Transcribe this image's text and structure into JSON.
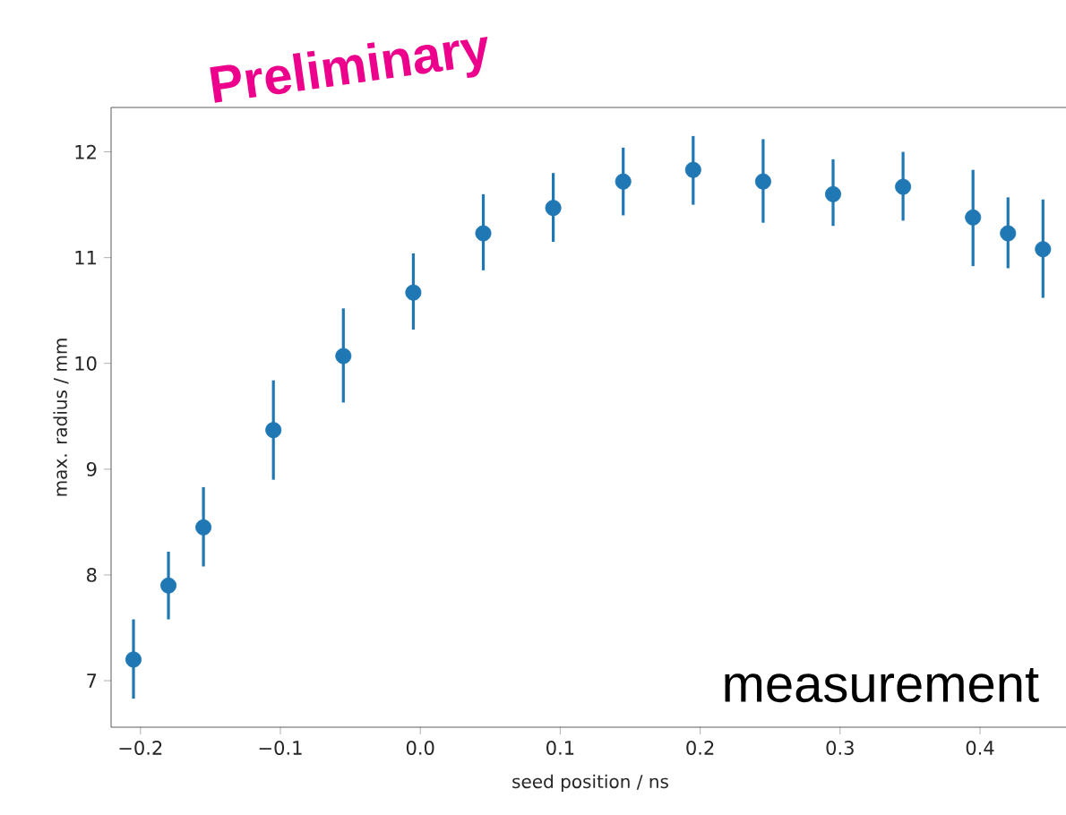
{
  "chart_data": {
    "type": "scatter",
    "xlabel": "seed position / ns",
    "ylabel": "max. radius / mm",
    "annotations": [
      "Preliminary",
      "measurement"
    ],
    "x": [
      -0.205,
      -0.18,
      -0.155,
      -0.105,
      -0.055,
      -0.005,
      0.045,
      0.095,
      0.145,
      0.195,
      0.245,
      0.295,
      0.345,
      0.395,
      0.42,
      0.445
    ],
    "series": [
      {
        "color": "#1f77b4",
        "values": [
          7.2,
          7.9,
          8.45,
          9.37,
          10.07,
          10.67,
          11.23,
          11.47,
          11.72,
          11.83,
          11.72,
          11.6,
          11.67,
          11.38,
          11.23,
          11.08
        ],
        "errors": [
          [
            6.83,
            7.58
          ],
          [
            7.58,
            8.22
          ],
          [
            8.08,
            8.83
          ],
          [
            8.9,
            9.84
          ],
          [
            9.63,
            10.52
          ],
          [
            10.32,
            11.04
          ],
          [
            10.88,
            11.6
          ],
          [
            11.15,
            11.8
          ],
          [
            11.4,
            12.04
          ],
          [
            11.5,
            12.15
          ],
          [
            11.33,
            12.12
          ],
          [
            11.3,
            11.93
          ],
          [
            11.35,
            12.0
          ],
          [
            10.92,
            11.83
          ],
          [
            10.9,
            11.57
          ],
          [
            10.62,
            11.55
          ]
        ]
      }
    ],
    "xlim": [
      -0.221,
      0.464
    ],
    "ylim": [
      6.56,
      12.42
    ],
    "xticks": [
      {
        "value": -0.2,
        "label": "−0.2"
      },
      {
        "value": -0.1,
        "label": "−0.1"
      },
      {
        "value": 0.0,
        "label": "0.0"
      },
      {
        "value": 0.1,
        "label": "0.1"
      },
      {
        "value": 0.2,
        "label": "0.2"
      },
      {
        "value": 0.3,
        "label": "0.3"
      },
      {
        "value": 0.4,
        "label": "0.4"
      }
    ],
    "yticks": [
      7,
      8,
      9,
      10,
      11,
      12
    ],
    "marker": "circle"
  }
}
